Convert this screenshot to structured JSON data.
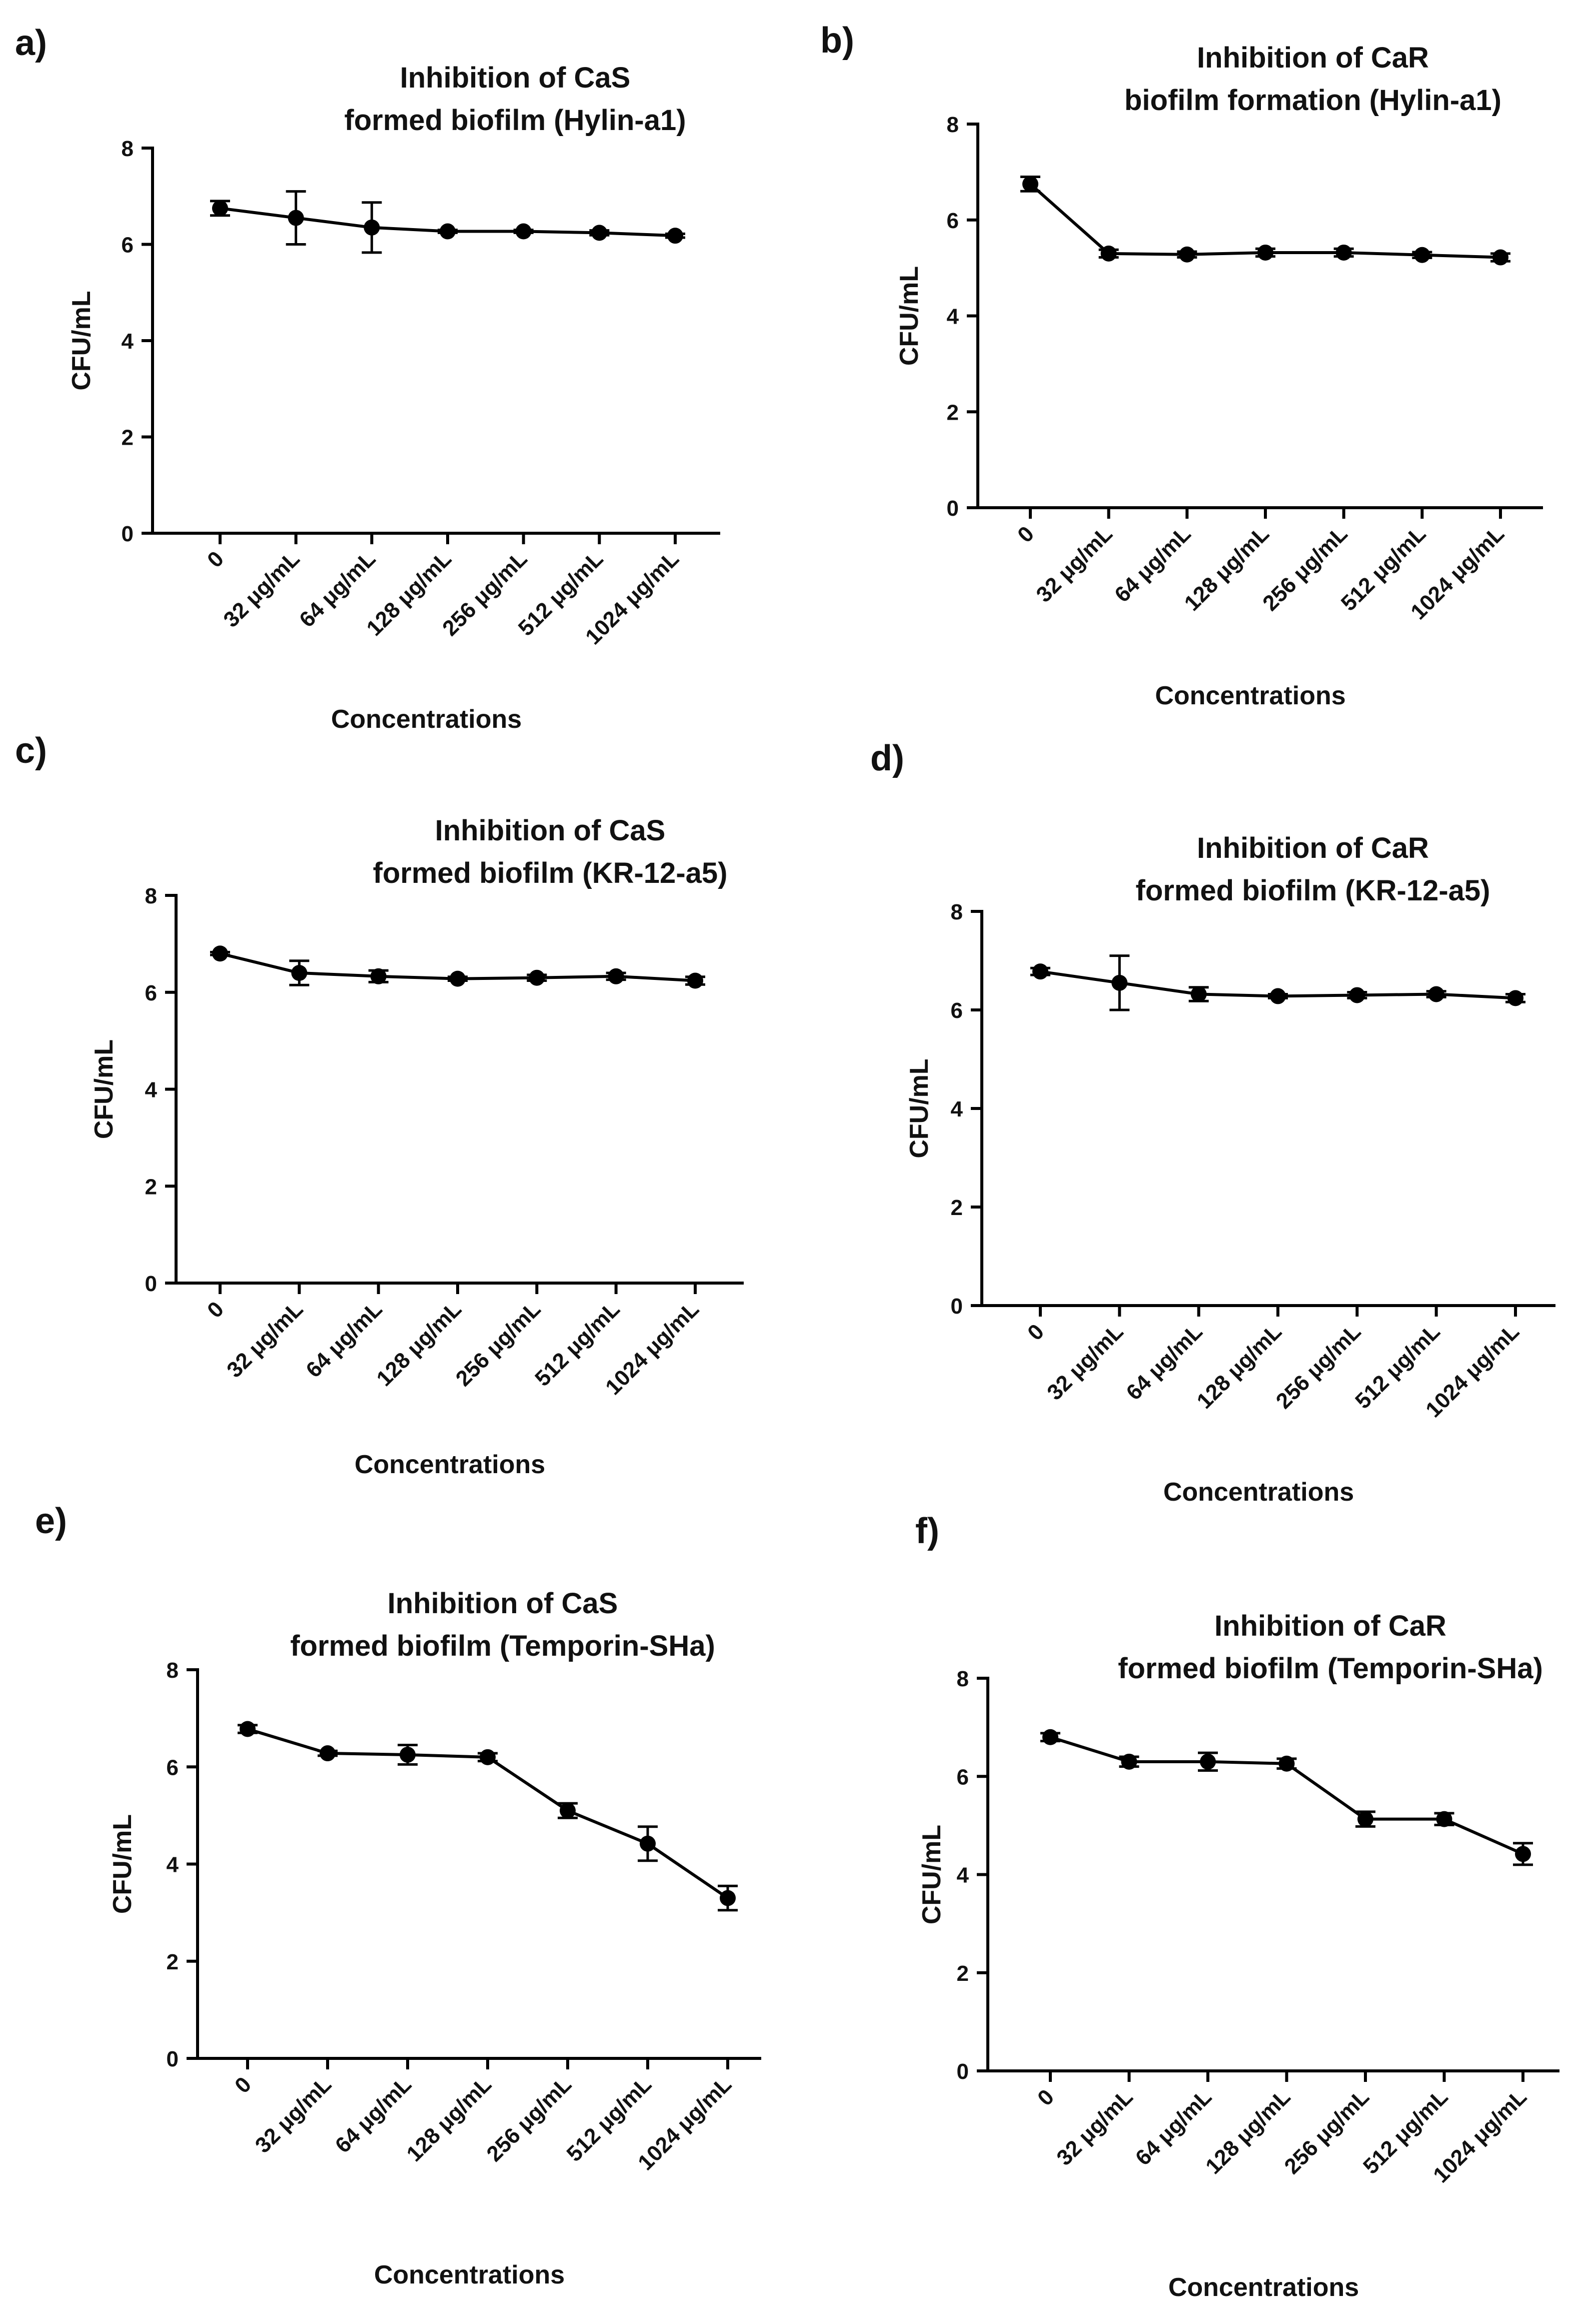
{
  "figure": {
    "common": {
      "categories": [
        "0",
        "32 μg/mL",
        "64 μg/mL",
        "128 μg/mL",
        "256 μg/mL",
        "512 μg/mL",
        "1024 μg/mL"
      ],
      "ylabel": "CFU/mL",
      "yticks": [
        "0",
        "2",
        "4",
        "6",
        "8"
      ]
    }
  },
  "chart_data": [
    {
      "panel": "a)",
      "type": "line",
      "title": [
        "Inhibition of CaS",
        "formed biofilm (Hylin-a1)"
      ],
      "xlabel": "Concentrations",
      "ylabel": "CFU/mL",
      "ylim": [
        0,
        8
      ],
      "categories": [
        "0",
        "32 μg/mL",
        "64 μg/mL",
        "128 μg/mL",
        "256 μg/mL",
        "512 μg/mL",
        "1024 μg/mL"
      ],
      "values": [
        6.75,
        6.55,
        6.35,
        6.27,
        6.27,
        6.24,
        6.18
      ],
      "errors": [
        0.15,
        0.55,
        0.52,
        0.03,
        0.03,
        0.05,
        0.04
      ]
    },
    {
      "panel": "b)",
      "type": "line",
      "title": [
        "Inhibition of CaR",
        "biofilm formation (Hylin-a1)"
      ],
      "xlabel": "Concentrations",
      "ylabel": "CFU/mL",
      "ylim": [
        0,
        8
      ],
      "categories": [
        "0",
        "32 μg/mL",
        "64 μg/mL",
        "128 μg/mL",
        "256 μg/mL",
        "512 μg/mL",
        "1024 μg/mL"
      ],
      "values": [
        6.75,
        5.3,
        5.28,
        5.32,
        5.32,
        5.27,
        5.22
      ],
      "errors": [
        0.15,
        0.08,
        0.06,
        0.08,
        0.08,
        0.06,
        0.08
      ]
    },
    {
      "panel": "c)",
      "type": "line",
      "title": [
        "Inhibition of CaS",
        "formed biofilm (KR-12-a5)"
      ],
      "xlabel": "Concentrations",
      "ylabel": "CFU/mL",
      "ylim": [
        0,
        8
      ],
      "categories": [
        "0",
        "32 μg/mL",
        "64 μg/mL",
        "128 μg/mL",
        "256 μg/mL",
        "512 μg/mL",
        "1024 μg/mL"
      ],
      "values": [
        6.8,
        6.4,
        6.33,
        6.28,
        6.3,
        6.33,
        6.24
      ],
      "errors": [
        0.03,
        0.25,
        0.12,
        0.04,
        0.06,
        0.07,
        0.08
      ]
    },
    {
      "panel": "d)",
      "type": "line",
      "title": [
        "Inhibition of CaR",
        "formed biofilm (KR-12-a5)"
      ],
      "xlabel": "Concentrations",
      "ylabel": "CFU/mL",
      "ylim": [
        0,
        8
      ],
      "categories": [
        "0",
        "32 μg/mL",
        "64 μg/mL",
        "128 μg/mL",
        "256 μg/mL",
        "512 μg/mL",
        "1024 μg/mL"
      ],
      "values": [
        6.78,
        6.55,
        6.32,
        6.28,
        6.3,
        6.32,
        6.24
      ],
      "errors": [
        0.07,
        0.55,
        0.14,
        0.04,
        0.06,
        0.06,
        0.08
      ]
    },
    {
      "panel": "e)",
      "type": "line",
      "title": [
        "Inhibition of CaS",
        "formed biofilm (Temporin-SHa)"
      ],
      "xlabel": "Concentrations",
      "ylabel": "CFU/mL",
      "ylim": [
        0,
        8
      ],
      "categories": [
        "0",
        "32 μg/mL",
        "64 μg/mL",
        "128 μg/mL",
        "256 μg/mL",
        "512 μg/mL",
        "1024 μg/mL"
      ],
      "values": [
        6.78,
        6.28,
        6.25,
        6.2,
        5.1,
        4.42,
        3.3
      ],
      "errors": [
        0.08,
        0.05,
        0.2,
        0.08,
        0.15,
        0.35,
        0.25
      ]
    },
    {
      "panel": "f)",
      "type": "line",
      "title": [
        "Inhibition of CaR",
        "formed biofilm (Temporin-SHa)"
      ],
      "xlabel": "Concentrations",
      "ylabel": "CFU/mL",
      "ylim": [
        0,
        8
      ],
      "categories": [
        "0",
        "32 μg/mL",
        "64 μg/mL",
        "128 μg/mL",
        "256 μg/mL",
        "512 μg/mL",
        "1024 μg/mL"
      ],
      "values": [
        6.8,
        6.3,
        6.3,
        6.26,
        5.13,
        5.13,
        4.42
      ],
      "errors": [
        0.08,
        0.1,
        0.18,
        0.1,
        0.15,
        0.12,
        0.22
      ]
    }
  ]
}
